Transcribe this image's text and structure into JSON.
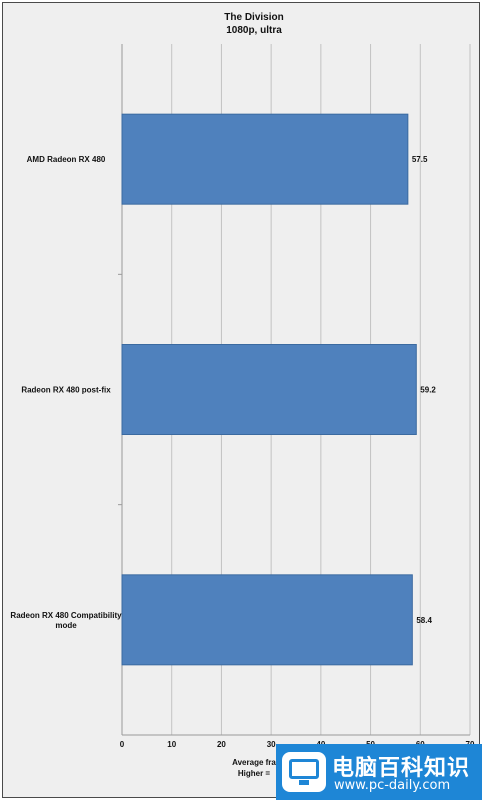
{
  "chart_data": {
    "type": "bar",
    "orientation": "horizontal",
    "title": "The Division",
    "subtitle": "1080p, ultra",
    "categories": [
      "AMD Radeon RX 480",
      "Radeon RX 480 post-fix",
      "Radeon RX 480 Compatibility mode"
    ],
    "category_lines": [
      [
        "AMD Radeon RX 480"
      ],
      [
        "Radeon RX 480 post-fix"
      ],
      [
        "Radeon RX 480 Compatibility",
        "mode"
      ]
    ],
    "values": [
      57.5,
      59.2,
      58.4
    ],
    "value_labels": [
      "57.5",
      "59.2",
      "58.4"
    ],
    "x_ticks": [
      "0",
      "10",
      "20",
      "30",
      "40",
      "50",
      "60",
      "70"
    ],
    "xlim": [
      0,
      70
    ],
    "xlabel_lines": [
      "Average fra",
      "Higher ="
    ],
    "grid": true,
    "bar_color": "#4f81bd"
  },
  "watermark": {
    "text_cn": "电脑百科知识",
    "url": "www.pc-daily.com",
    "color": "#1e86d6"
  }
}
